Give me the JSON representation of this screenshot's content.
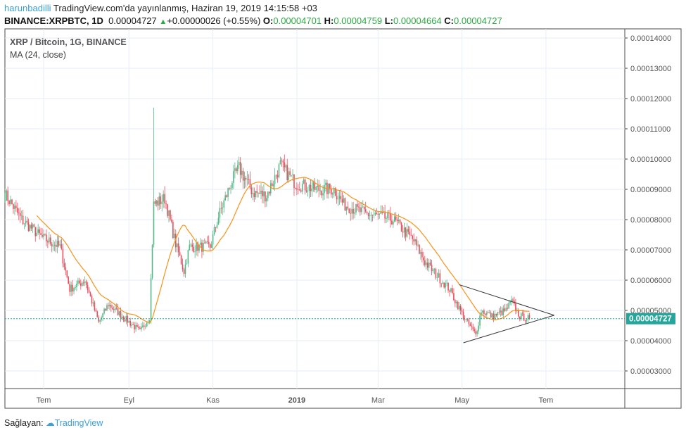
{
  "header": {
    "user": "harunbadilli",
    "published": "TradingView.com'da yayınlanmış, Haziran 19, 2019 14:15:58 +03",
    "symbol": "BINANCE:XRPBTC, 1D",
    "last": "0.00004727",
    "change": "+0.00000026 (+0.55%)",
    "o_label": "O:",
    "o": "0.00004701",
    "h_label": "H:",
    "h": "0.00004759",
    "l_label": "L:",
    "l": "0.00004664",
    "c_label": "C:",
    "c": "0.00004727"
  },
  "legend": {
    "title": "XRP / Bitcoin, 1G, BINANCE",
    "indicator": "MA (24, close)"
  },
  "footer": {
    "label": "Sağlayan:",
    "brand": "TradingView"
  },
  "colors": {
    "up": "#53b987",
    "down": "#eb4d5c",
    "ma": "#f7931a",
    "last_badge": "#26a69a",
    "user": "#3ca0d8"
  },
  "chart_data": {
    "type": "candlestick",
    "ylim": [
      2.5e-05,
      0.000143
    ],
    "y_ticks": [
      "0.00003000",
      "0.00004000",
      "0.00005000",
      "0.00006000",
      "0.00007000",
      "0.00008000",
      "0.00009000",
      "0.00010000",
      "0.00011000",
      "0.00012000",
      "0.00013000",
      "0.00014000"
    ],
    "x_ticks": [
      {
        "label": "Tem",
        "date": "2018-07-01"
      },
      {
        "label": "Eyl",
        "date": "2018-09-01"
      },
      {
        "label": "Kas",
        "date": "2018-11-01"
      },
      {
        "label": "2019",
        "date": "2019-01-01"
      },
      {
        "label": "Mar",
        "date": "2019-03-01"
      },
      {
        "label": "May",
        "date": "2019-05-01"
      },
      {
        "label": "Tem",
        "date": "2019-07-01"
      }
    ],
    "x_range": [
      "2018-06-03",
      "2019-08-28"
    ],
    "last_price": "0.00004727",
    "ma_period": 24,
    "grid": true,
    "close_keypoints": [
      [
        "2018-06-03",
        8.85e-05
      ],
      [
        "2018-06-15",
        8e-05
      ],
      [
        "2018-06-30",
        7.4e-05
      ],
      [
        "2018-07-13",
        7.1e-05
      ],
      [
        "2018-07-20",
        5.7e-05
      ],
      [
        "2018-07-31",
        6e-05
      ],
      [
        "2018-08-10",
        4.6e-05
      ],
      [
        "2018-08-17",
        5.2e-05
      ],
      [
        "2018-08-30",
        4.7e-05
      ],
      [
        "2018-09-09",
        4.3e-05
      ],
      [
        "2018-09-16",
        4.8e-05
      ],
      [
        "2018-09-19",
        8.5e-05
      ],
      [
        "2018-09-27",
        8.7e-05
      ],
      [
        "2018-10-05",
        7.2e-05
      ],
      [
        "2018-10-11",
        6.3e-05
      ],
      [
        "2018-10-15",
        7.1e-05
      ],
      [
        "2018-10-30",
        7.1e-05
      ],
      [
        "2018-11-05",
        8.1e-05
      ],
      [
        "2018-11-15",
        9.3e-05
      ],
      [
        "2018-11-20",
        9.7e-05
      ],
      [
        "2018-11-30",
        8.9e-05
      ],
      [
        "2018-12-10",
        8.8e-05
      ],
      [
        "2018-12-20",
        9.8e-05
      ],
      [
        "2018-12-31",
        9.2e-05
      ],
      [
        "2019-01-15",
        9e-05
      ],
      [
        "2019-01-28",
        9e-05
      ],
      [
        "2019-02-04",
        8.5e-05
      ],
      [
        "2019-02-20",
        8.2e-05
      ],
      [
        "2019-03-12",
        8e-05
      ],
      [
        "2019-03-27",
        7.3e-05
      ],
      [
        "2019-04-04",
        6.6e-05
      ],
      [
        "2019-04-22",
        5.7e-05
      ],
      [
        "2019-05-02",
        4.8e-05
      ],
      [
        "2019-05-11",
        4.2e-05
      ],
      [
        "2019-05-15",
        5e-05
      ],
      [
        "2019-05-23",
        4.8e-05
      ],
      [
        "2019-06-02",
        5e-05
      ],
      [
        "2019-06-06",
        5.3e-05
      ],
      [
        "2019-06-12",
        4.8e-05
      ],
      [
        "2019-06-19",
        4.73e-05
      ]
    ],
    "spike_high": {
      "date": "2018-09-19",
      "price": 0.000117
    },
    "triangle": {
      "upper": [
        [
          "2019-04-29",
          5.85e-05
        ],
        [
          "2019-07-07",
          4.84e-05
        ]
      ],
      "lower": [
        [
          "2019-05-02",
          3.93e-05
        ],
        [
          "2019-07-07",
          4.84e-05
        ]
      ]
    }
  }
}
